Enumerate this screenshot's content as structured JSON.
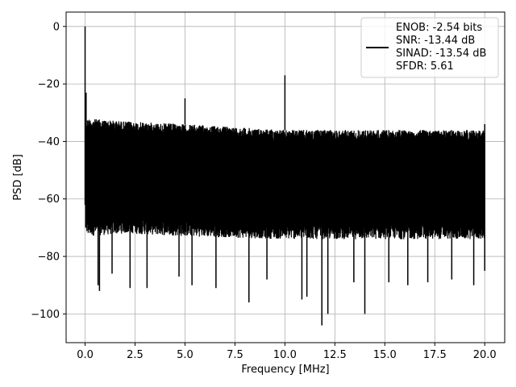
{
  "chart_data": {
    "type": "line",
    "xlabel": "Frequency [MHz]",
    "ylabel": "PSD [dB]",
    "xlim": [
      -0.95,
      21.0
    ],
    "ylim": [
      -110,
      5
    ],
    "xticks": [
      0.0,
      2.5,
      5.0,
      7.5,
      10.0,
      12.5,
      15.0,
      17.5,
      20.0
    ],
    "xtick_labels": [
      "0.0",
      "2.5",
      "5.0",
      "7.5",
      "10.0",
      "12.5",
      "15.0",
      "17.5",
      "20.0"
    ],
    "yticks": [
      0,
      -20,
      -40,
      -60,
      -80,
      -100
    ],
    "ytick_labels": [
      "0",
      "−20",
      "−40",
      "−60",
      "−80",
      "−100"
    ],
    "grid": true,
    "legend_position": "top-right",
    "legend_lines": [
      "ENOB: -2.54 bits",
      "SNR: -13.44 dB",
      "SINAD: -13.54 dB",
      "SFDR: 5.61"
    ],
    "series": [
      {
        "color": "#000000",
        "x_range": [
          0.0,
          20.0
        ],
        "noise_upper_envelope": [
          [
            0.1,
            -32
          ],
          [
            2.0,
            -33
          ],
          [
            5.0,
            -34
          ],
          [
            7.5,
            -35
          ],
          [
            10.0,
            -36
          ],
          [
            12.5,
            -36
          ],
          [
            15.0,
            -36
          ],
          [
            17.5,
            -36
          ],
          [
            20.0,
            -36
          ]
        ],
        "noise_lower_envelope": [
          [
            0.1,
            -73
          ],
          [
            2.0,
            -72
          ],
          [
            5.0,
            -73
          ],
          [
            10.0,
            -74
          ],
          [
            15.0,
            -74
          ],
          [
            20.0,
            -74
          ]
        ],
        "dips": [
          [
            0.65,
            -90
          ],
          [
            0.72,
            -92
          ],
          [
            2.25,
            -91
          ],
          [
            3.1,
            -91
          ],
          [
            5.35,
            -90
          ],
          [
            6.55,
            -91
          ],
          [
            8.2,
            -96
          ],
          [
            10.85,
            -95
          ],
          [
            11.1,
            -94
          ],
          [
            11.85,
            -104
          ],
          [
            12.15,
            -100
          ],
          [
            14.0,
            -100
          ],
          [
            16.15,
            -90
          ],
          [
            17.15,
            -89
          ],
          [
            19.45,
            -90
          ],
          [
            4.7,
            -87
          ],
          [
            9.1,
            -88
          ],
          [
            13.45,
            -89
          ],
          [
            15.2,
            -89
          ],
          [
            1.35,
            -86
          ],
          [
            18.35,
            -88
          ]
        ],
        "peaks": [
          [
            0.0,
            0
          ],
          [
            0.05,
            -23
          ],
          [
            5.0,
            -25
          ],
          [
            10.0,
            -17
          ],
          [
            20.0,
            -34
          ]
        ]
      }
    ]
  }
}
